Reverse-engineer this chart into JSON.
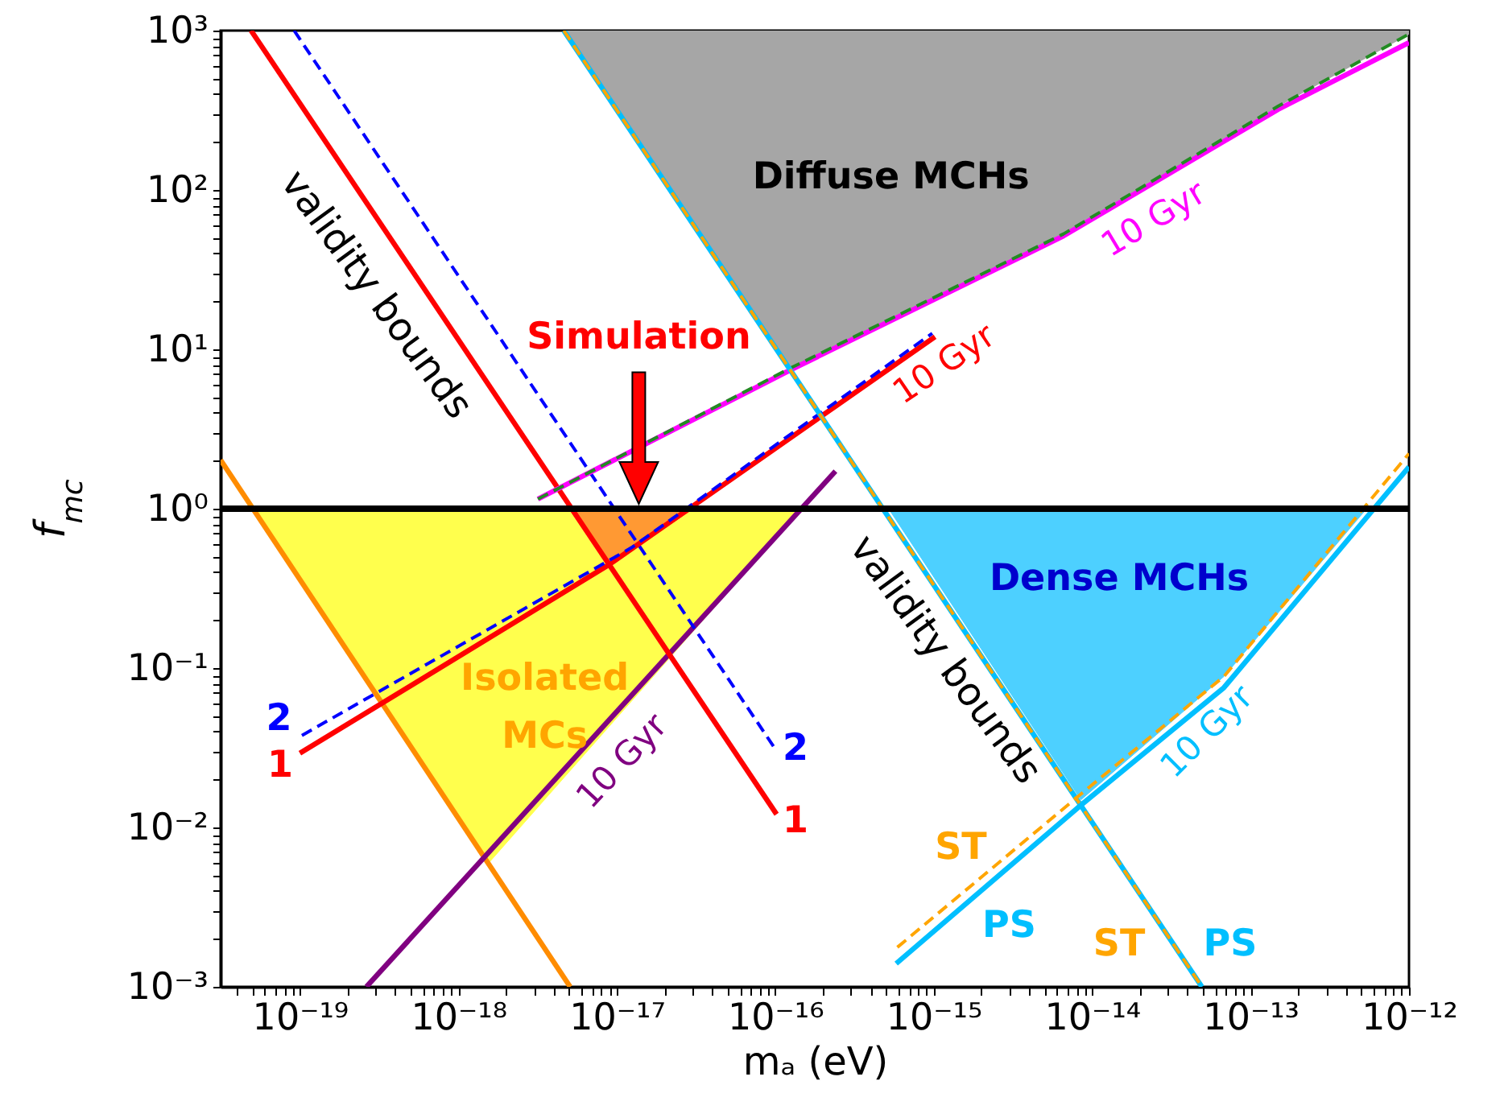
{
  "chart_data": {
    "type": "line",
    "xlabel": "mₐ (eV)",
    "ylabel": "f$_{mc}$",
    "log": "xy",
    "grid": false,
    "xlim": [
      3.16e-20,
      1e-12
    ],
    "ylim": [
      0.001,
      1000.0
    ],
    "xticks": [
      {
        "value": 1e-19,
        "label": "10⁻¹⁹"
      },
      {
        "value": 1e-18,
        "label": "10⁻¹⁸"
      },
      {
        "value": 1e-17,
        "label": "10⁻¹⁷"
      },
      {
        "value": 1e-16,
        "label": "10⁻¹⁶"
      },
      {
        "value": 1e-15,
        "label": "10⁻¹⁵"
      },
      {
        "value": 1e-14,
        "label": "10⁻¹⁴"
      },
      {
        "value": 1e-13,
        "label": "10⁻¹³"
      },
      {
        "value": 1e-12,
        "label": "10⁻¹²"
      },
      {
        "value": 4e-20,
        "label": null
      },
      {
        "value": 5e-20,
        "label": null
      },
      {
        "value": 6e-20,
        "label": null
      },
      {
        "value": 7e-20,
        "label": null
      },
      {
        "value": 8e-20,
        "label": null
      },
      {
        "value": 9e-20,
        "label": null
      },
      {
        "value": 2e-19,
        "label": null
      },
      {
        "value": 3e-19,
        "label": null
      },
      {
        "value": 4e-19,
        "label": null
      },
      {
        "value": 5e-19,
        "label": null
      },
      {
        "value": 6e-19,
        "label": null
      },
      {
        "value": 7e-19,
        "label": null
      },
      {
        "value": 8e-19,
        "label": null
      },
      {
        "value": 9e-19,
        "label": null
      },
      {
        "value": 2e-18,
        "label": null
      },
      {
        "value": 3e-18,
        "label": null
      },
      {
        "value": 4e-18,
        "label": null
      },
      {
        "value": 5e-18,
        "label": null
      },
      {
        "value": 6e-18,
        "label": null
      },
      {
        "value": 7e-18,
        "label": null
      },
      {
        "value": 8e-18,
        "label": null
      },
      {
        "value": 9e-18,
        "label": null
      },
      {
        "value": 2e-17,
        "label": null
      },
      {
        "value": 3e-17,
        "label": null
      },
      {
        "value": 4e-17,
        "label": null
      },
      {
        "value": 5e-17,
        "label": null
      },
      {
        "value": 6e-17,
        "label": null
      },
      {
        "value": 7e-17,
        "label": null
      },
      {
        "value": 8e-17,
        "label": null
      },
      {
        "value": 9e-17,
        "label": null
      },
      {
        "value": 2e-16,
        "label": null
      },
      {
        "value": 3e-16,
        "label": null
      },
      {
        "value": 4e-16,
        "label": null
      },
      {
        "value": 5e-16,
        "label": null
      },
      {
        "value": 6e-16,
        "label": null
      },
      {
        "value": 7e-16,
        "label": null
      },
      {
        "value": 8e-16,
        "label": null
      },
      {
        "value": 9e-16,
        "label": null
      },
      {
        "value": 2e-15,
        "label": null
      },
      {
        "value": 3e-15,
        "label": null
      },
      {
        "value": 4e-15,
        "label": null
      },
      {
        "value": 5e-15,
        "label": null
      },
      {
        "value": 6e-15,
        "label": null
      },
      {
        "value": 7e-15,
        "label": null
      },
      {
        "value": 8e-15,
        "label": null
      },
      {
        "value": 9e-15,
        "label": null
      },
      {
        "value": 2e-14,
        "label": null
      },
      {
        "value": 3e-14,
        "label": null
      },
      {
        "value": 4e-14,
        "label": null
      },
      {
        "value": 5e-14,
        "label": null
      },
      {
        "value": 6e-14,
        "label": null
      },
      {
        "value": 7e-14,
        "label": null
      },
      {
        "value": 8e-14,
        "label": null
      },
      {
        "value": 9e-14,
        "label": null
      },
      {
        "value": 2e-13,
        "label": null
      },
      {
        "value": 3e-13,
        "label": null
      },
      {
        "value": 4e-13,
        "label": null
      },
      {
        "value": 5e-13,
        "label": null
      },
      {
        "value": 6e-13,
        "label": null
      },
      {
        "value": 7e-13,
        "label": null
      },
      {
        "value": 8e-13,
        "label": null
      },
      {
        "value": 9e-13,
        "label": null
      }
    ],
    "yticks": [
      {
        "value": 0.001,
        "label": "10⁻³"
      },
      {
        "value": 0.01,
        "label": "10⁻²"
      },
      {
        "value": 0.1,
        "label": "10⁻¹"
      },
      {
        "value": 1,
        "label": "10⁰"
      },
      {
        "value": 10,
        "label": "10¹"
      },
      {
        "value": 100,
        "label": "10²"
      },
      {
        "value": 1000,
        "label": "10³"
      },
      {
        "value": 0.002,
        "label": null
      },
      {
        "value": 0.003,
        "label": null
      },
      {
        "value": 0.004,
        "label": null
      },
      {
        "value": 0.005,
        "label": null
      },
      {
        "value": 0.006,
        "label": null
      },
      {
        "value": 0.007,
        "label": null
      },
      {
        "value": 0.008,
        "label": null
      },
      {
        "value": 0.009,
        "label": null
      },
      {
        "value": 0.02,
        "label": null
      },
      {
        "value": 0.03,
        "label": null
      },
      {
        "value": 0.04,
        "label": null
      },
      {
        "value": 0.05,
        "label": null
      },
      {
        "value": 0.06,
        "label": null
      },
      {
        "value": 0.07,
        "label": null
      },
      {
        "value": 0.08,
        "label": null
      },
      {
        "value": 0.09,
        "label": null
      },
      {
        "value": 0.2,
        "label": null
      },
      {
        "value": 0.3,
        "label": null
      },
      {
        "value": 0.4,
        "label": null
      },
      {
        "value": 0.5,
        "label": null
      },
      {
        "value": 0.6,
        "label": null
      },
      {
        "value": 0.7,
        "label": null
      },
      {
        "value": 0.8,
        "label": null
      },
      {
        "value": 0.9,
        "label": null
      },
      {
        "value": 2,
        "label": null
      },
      {
        "value": 3,
        "label": null
      },
      {
        "value": 4,
        "label": null
      },
      {
        "value": 5,
        "label": null
      },
      {
        "value": 6,
        "label": null
      },
      {
        "value": 7,
        "label": null
      },
      {
        "value": 8,
        "label": null
      },
      {
        "value": 9,
        "label": null
      },
      {
        "value": 20,
        "label": null
      },
      {
        "value": 30,
        "label": null
      },
      {
        "value": 40,
        "label": null
      },
      {
        "value": 50,
        "label": null
      },
      {
        "value": 60,
        "label": null
      },
      {
        "value": 70,
        "label": null
      },
      {
        "value": 80,
        "label": null
      },
      {
        "value": 90,
        "label": null
      },
      {
        "value": 200,
        "label": null
      },
      {
        "value": 300,
        "label": null
      },
      {
        "value": 400,
        "label": null
      },
      {
        "value": 500,
        "label": null
      },
      {
        "value": 600,
        "label": null
      },
      {
        "value": 700,
        "label": null
      },
      {
        "value": 800,
        "label": null
      },
      {
        "value": 900,
        "label": null
      }
    ],
    "series": [
      {
        "type": "area",
        "color": "#ffff4d",
        "x": [
          5.06e-20,
          1.58e-18,
          1.46e-16,
          5.06e-20
        ],
        "values": [
          1,
          0.0061,
          1,
          1
        ]
      },
      {
        "type": "area",
        "color": "#ff9933",
        "x": [
          5e-18,
          8.77e-18,
          3.05e-17,
          5e-18
        ],
        "values": [
          1,
          0.44,
          1,
          1
        ]
      },
      {
        "type": "area",
        "color": "#a6a6a6",
        "x": [
          4.63e-18,
          1.29e-16,
          6.6e-15,
          1.49e-13,
          1e-12,
          1e-12,
          4.63e-18
        ],
        "values": [
          1000,
          7.5,
          53,
          335,
          950,
          1000,
          1000
        ]
      },
      {
        "type": "area",
        "color": "#4dd0ff",
        "x": [
          5.2e-16,
          8.5e-15,
          6.8e-14,
          5.4e-13,
          5.2e-16
        ],
        "values": [
          1,
          0.0149,
          0.0887,
          1,
          1
        ]
      },
      {
        "color": "#ff8c00",
        "line_style": "solid",
        "x": [
          3.16e-20,
          5.08e-18
        ],
        "values": [
          2.02,
          0.001
        ]
      },
      {
        "color": "#800080",
        "line_style": "solid",
        "x": [
          2.63e-19,
          2.4e-16
        ],
        "values": [
          0.001,
          1.72
        ]
      },
      {
        "color": "#ff0000",
        "line_style": "solid",
        "x": [
          4.92e-20,
          1.02e-16
        ],
        "values": [
          1000,
          0.0121
        ]
      },
      {
        "color": "#0000ff",
        "line_style": "dashed",
        "x": [
          9.2e-20,
          1e-16
        ],
        "values": [
          1000,
          0.0311
        ]
      },
      {
        "color": "#ff0000",
        "line_style": "solid",
        "x": [
          1e-19,
          8.77e-18,
          1.02e-15
        ],
        "values": [
          0.0292,
          0.44,
          12.0
        ]
      },
      {
        "color": "#0000ff",
        "line_style": "dashed",
        "x": [
          1.03e-19,
          1.24e-17,
          9.8e-16
        ],
        "values": [
          0.0378,
          0.57,
          12.6
        ]
      },
      {
        "color": "#ff00ff",
        "line_style": "solid",
        "x": [
          3.18e-18,
          1.24e-16,
          6.6e-15,
          1.49e-13,
          1e-12
        ],
        "values": [
          1.15,
          7.4,
          51.5,
          320,
          841
        ]
      },
      {
        "color": "#228b22",
        "line_style": "dashed",
        "x": [
          3.18e-18,
          1.24e-16,
          6.6e-15,
          1.49e-13,
          1e-12
        ],
        "values": [
          1.15,
          7.6,
          53,
          335,
          950
        ]
      },
      {
        "color": "#00bfff",
        "line_style": "solid",
        "x": [
          4.63e-18,
          4.93e-14
        ],
        "values": [
          1000,
          0.001
        ]
      },
      {
        "color": "#ffa500",
        "line_style": "dashed",
        "x": [
          4.63e-18,
          4.93e-14
        ],
        "values": [
          1000,
          0.001
        ]
      },
      {
        "color": "#00bfff",
        "line_style": "solid",
        "x": [
          5.8e-16,
          8.5e-15,
          6.8e-14,
          1e-12
        ],
        "values": [
          0.0014,
          0.0138,
          0.0755,
          1.83
        ]
      },
      {
        "color": "#ffa500",
        "line_style": "dashed",
        "x": [
          5.9e-16,
          8.5e-15,
          6.8e-14,
          1e-12
        ],
        "values": [
          0.00177,
          0.0162,
          0.0887,
          2.22
        ]
      }
    ],
    "ref_lines": [
      {
        "axis": "y",
        "value": 1,
        "color": "#000000"
      }
    ],
    "annotations": [
      "Simulation",
      "Diffuse MCHs",
      "Dense MCHs",
      "Isolated MCs",
      "validity bounds",
      "validity bounds",
      "10 Gyr",
      "10 Gyr",
      "10 Gyr",
      "10 Gyr",
      "1",
      "2",
      "1",
      "2",
      "ST",
      "PS",
      "ST",
      "PS"
    ]
  }
}
